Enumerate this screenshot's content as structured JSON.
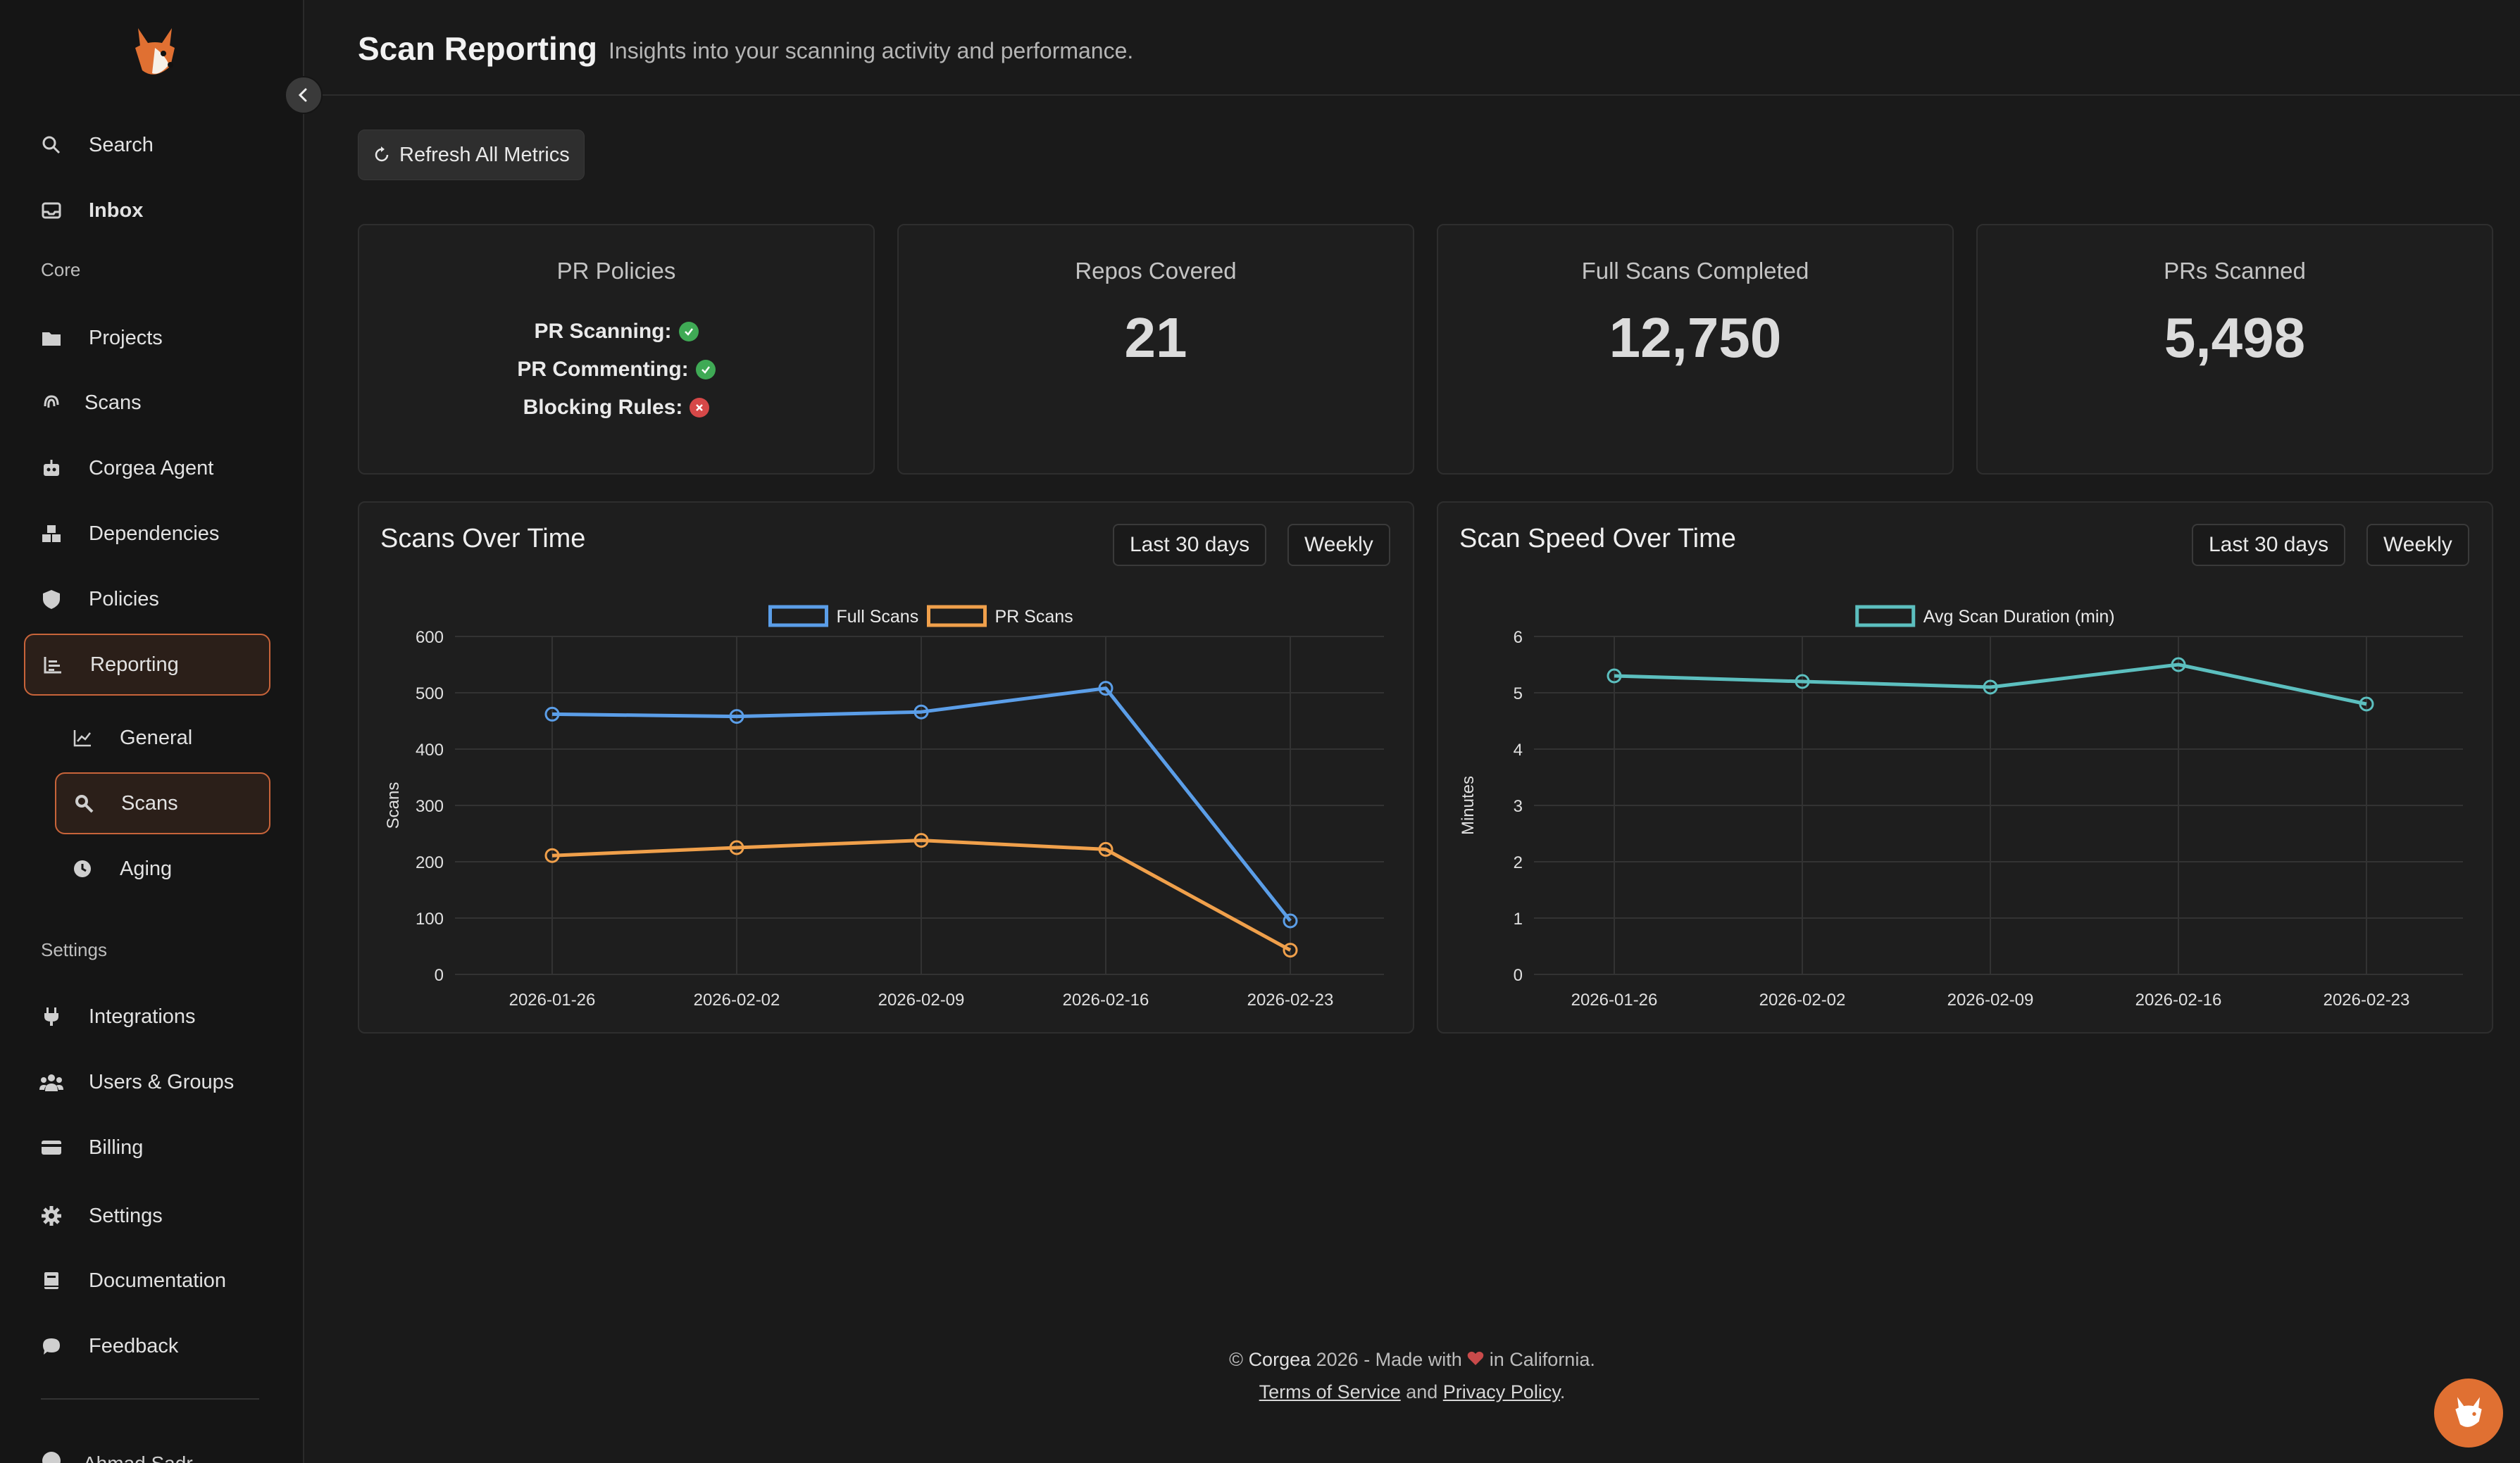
{
  "sidebar": {
    "search": "Search",
    "inbox": "Inbox",
    "core_label": "Core",
    "projects": "Projects",
    "scans": "Scans",
    "agent": "Corgea Agent",
    "dependencies": "Dependencies",
    "policies": "Policies",
    "reporting": "Reporting",
    "general": "General",
    "scans_sub": "Scans",
    "aging": "Aging",
    "settings_label": "Settings",
    "integrations": "Integrations",
    "users_groups": "Users & Groups",
    "billing": "Billing",
    "settings": "Settings",
    "documentation": "Documentation",
    "feedback": "Feedback",
    "user_name": "Ahmad Sadr"
  },
  "header": {
    "title": "Scan Reporting",
    "subtitle": "Insights into your scanning activity and performance."
  },
  "toolbar": {
    "refresh_label": "Refresh All Metrics"
  },
  "cards": {
    "policies": {
      "title": "PR Policies",
      "pr_scanning": "PR Scanning:",
      "pr_commenting": "PR Commenting:",
      "blocking_rules": "Blocking Rules:"
    },
    "repos": {
      "title": "Repos Covered",
      "value": "21"
    },
    "full_scans": {
      "title": "Full Scans Completed",
      "value": "12,750"
    },
    "prs": {
      "title": "PRs Scanned",
      "value": "5,498"
    }
  },
  "panels": {
    "scans": {
      "title": "Scans Over Time",
      "range": "Last 30 days",
      "interval": "Weekly"
    },
    "speed": {
      "title": "Scan Speed Over Time",
      "range": "Last 30 days",
      "interval": "Weekly"
    }
  },
  "chart_data": [
    {
      "type": "line",
      "title": "Scans Over Time",
      "xlabel": "",
      "ylabel": "Scans",
      "x": [
        "2026-01-26",
        "2026-02-02",
        "2026-02-09",
        "2026-02-16",
        "2026-02-23"
      ],
      "ylim": [
        0,
        600
      ],
      "yticks": [
        0,
        100,
        200,
        300,
        400,
        500,
        600
      ],
      "grid": true,
      "legend": "top-center",
      "series": [
        {
          "name": "Full Scans",
          "color": "#5b9ee8",
          "values": [
            462,
            458,
            466,
            508,
            95
          ]
        },
        {
          "name": "PR Scans",
          "color": "#f0a04b",
          "values": [
            211,
            225,
            238,
            222,
            43
          ]
        }
      ]
    },
    {
      "type": "line",
      "title": "Scan Speed Over Time",
      "xlabel": "",
      "ylabel": "Minutes",
      "x": [
        "2026-01-26",
        "2026-02-02",
        "2026-02-09",
        "2026-02-16",
        "2026-02-23"
      ],
      "ylim": [
        0,
        6
      ],
      "yticks": [
        0,
        1,
        2,
        3,
        4,
        5,
        6
      ],
      "grid": true,
      "legend": "top-center",
      "series": [
        {
          "name": "Avg Scan Duration (min)",
          "color": "#5cbfbf",
          "values": [
            5.3,
            5.2,
            5.1,
            5.5,
            4.8
          ]
        }
      ]
    }
  ],
  "footer": {
    "copyright_prefix": "© ",
    "brand": "Corgea",
    "copyright_suffix": " 2026 - Made with",
    "location": " in California.",
    "terms": "Terms of Service",
    "and": " and ",
    "privacy": "Privacy Policy",
    "period": "."
  },
  "colors": {
    "accent": "#c8643a",
    "brand_orange": "#e07032"
  }
}
